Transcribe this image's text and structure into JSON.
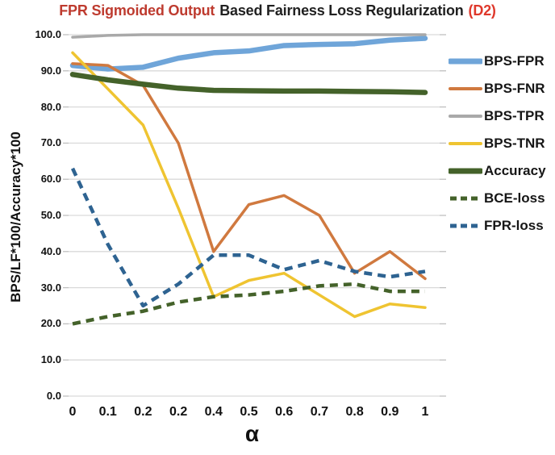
{
  "title": {
    "part_red_1": "FPR Sigmoided Output",
    "part_black": "Based Fairness Loss Regularization",
    "part_red_2": "(D2)",
    "color_red_1": "#BE3B2F",
    "color_red_2": "#DF382B"
  },
  "chart_data": {
    "type": "line",
    "title": "FPR Sigmoided Output Based Fairness Loss Regularization (D2)",
    "xlabel": "α",
    "ylabel": "BPS/LF*100/Accuracy*100",
    "x_tick_labels": [
      "0",
      "0.1",
      "0.2",
      "0.2",
      "0.4",
      "0.5",
      "0.6",
      "0.7",
      "0.8",
      "0.9",
      "1"
    ],
    "ylim": [
      0,
      100
    ],
    "y_tick_step": 10,
    "y_tick_decimals": 1,
    "grid": "horizontal",
    "gridline_color": "#D9D9D9",
    "tick_color": "#BFBFBF",
    "legend_position": "right",
    "series": [
      {
        "name": "BPS-FPR",
        "color": "#6FA5D9",
        "width": 6.5,
        "dashed": false,
        "values": [
          91.5,
          90.5,
          91,
          93.5,
          95,
          95.5,
          97,
          97.3,
          97.5,
          98.5,
          99
        ]
      },
      {
        "name": "BPS-FNR",
        "color": "#D0793F",
        "width": 3.5,
        "dashed": false,
        "values": [
          92,
          91.5,
          86,
          70,
          40,
          53,
          55.5,
          50,
          34,
          40,
          32.5
        ]
      },
      {
        "name": "BPS-TPR",
        "color": "#A9A9A9",
        "width": 3.5,
        "dashed": false,
        "values": [
          99.3,
          99.8,
          100,
          100,
          100,
          100,
          100,
          100,
          100,
          100,
          100
        ]
      },
      {
        "name": "BPS-TNR",
        "color": "#EFC431",
        "width": 3.5,
        "dashed": false,
        "values": [
          95,
          85,
          75,
          52,
          27.5,
          32,
          34,
          28,
          22,
          25.5,
          24.5
        ]
      },
      {
        "name": "Accuracy",
        "color": "#44622A",
        "width": 6.5,
        "dashed": false,
        "values": [
          89,
          87.5,
          86.3,
          85.2,
          84.6,
          84.5,
          84.4,
          84.4,
          84.3,
          84.2,
          84
        ]
      },
      {
        "name": "BCE-loss",
        "color": "#44622A",
        "width": 4.5,
        "dashed": true,
        "values": [
          20,
          22,
          23.5,
          26,
          27.5,
          28,
          29,
          30.5,
          31,
          29,
          29
        ]
      },
      {
        "name": "FPR-loss",
        "color": "#2E6391",
        "width": 4.5,
        "dashed": true,
        "values": [
          63,
          42,
          25,
          31,
          39,
          39,
          35,
          37.5,
          34.5,
          33,
          34.5
        ]
      }
    ]
  }
}
